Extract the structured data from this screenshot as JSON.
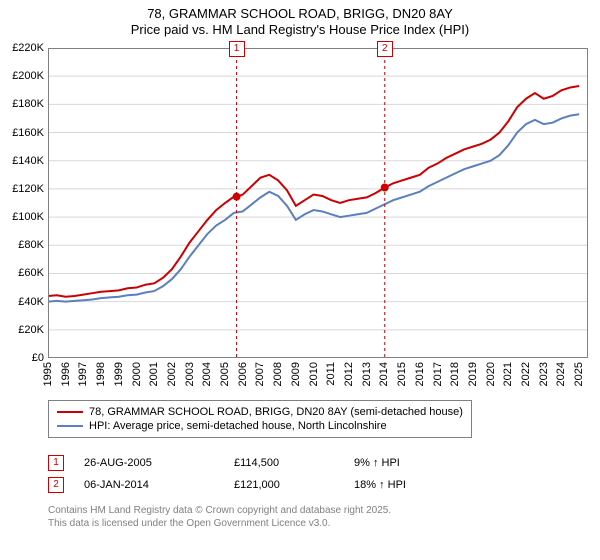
{
  "title": {
    "line1": "78, GRAMMAR SCHOOL ROAD, BRIGG, DN20 8AY",
    "line2": "Price paid vs. HM Land Registry's House Price Index (HPI)",
    "fontsize": 13,
    "color": "#000000"
  },
  "chart": {
    "type": "line",
    "background_color": "#ffffff",
    "plot_border_color": "#808080",
    "grid_color": "#d8d8d8",
    "xlim": [
      1995,
      2025.5
    ],
    "ylim": [
      0,
      220000
    ],
    "xticks": [
      1995,
      1996,
      1997,
      1998,
      1999,
      2000,
      2001,
      2002,
      2003,
      2004,
      2005,
      2006,
      2007,
      2008,
      2009,
      2010,
      2011,
      2012,
      2013,
      2014,
      2015,
      2016,
      2017,
      2018,
      2019,
      2020,
      2021,
      2022,
      2023,
      2024,
      2025
    ],
    "yticks": [
      0,
      20000,
      40000,
      60000,
      80000,
      100000,
      120000,
      140000,
      160000,
      180000,
      200000,
      220000
    ],
    "ytick_labels": [
      "£0",
      "£20K",
      "£40K",
      "£60K",
      "£80K",
      "£100K",
      "£120K",
      "£140K",
      "£160K",
      "£180K",
      "£200K",
      "£220K"
    ],
    "tick_label_fontsize": 11,
    "tick_label_color": "#000000",
    "xtick_rotation": -90
  },
  "series": {
    "property": {
      "label": "78, GRAMMAR SCHOOL ROAD, BRIGG, DN20 8AY (semi-detached house)",
      "color": "#cc0000",
      "line_width": 2,
      "x": [
        1995,
        1995.5,
        1996,
        1996.5,
        1997,
        1997.5,
        1998,
        1998.5,
        1999,
        1999.5,
        2000,
        2000.5,
        2001,
        2001.5,
        2002,
        2002.5,
        2003,
        2003.5,
        2004,
        2004.5,
        2005,
        2005.5,
        2005.65,
        2006,
        2006.5,
        2007,
        2007.5,
        2008,
        2008.5,
        2009,
        2009.5,
        2010,
        2010.5,
        2011,
        2011.5,
        2012,
        2012.5,
        2013,
        2013.5,
        2014.02,
        2014.5,
        2015,
        2015.5,
        2016,
        2016.5,
        2017,
        2017.5,
        2018,
        2018.5,
        2019,
        2019.5,
        2020,
        2020.5,
        2021,
        2021.5,
        2022,
        2022.5,
        2023,
        2023.5,
        2024,
        2024.5,
        2025
      ],
      "y": [
        44000,
        44500,
        43500,
        44000,
        45000,
        46000,
        47000,
        47500,
        48000,
        49500,
        50000,
        52000,
        53000,
        57000,
        63000,
        72000,
        82000,
        90000,
        98000,
        105000,
        110000,
        114500,
        114500,
        116000,
        122000,
        128000,
        130000,
        126000,
        119000,
        108000,
        112000,
        116000,
        115000,
        112000,
        110000,
        112000,
        113000,
        114000,
        117000,
        121000,
        124000,
        126000,
        128000,
        130000,
        135000,
        138000,
        142000,
        145000,
        148000,
        150000,
        152000,
        155000,
        160000,
        168000,
        178000,
        184000,
        188000,
        184000,
        186000,
        190000,
        192000,
        193000
      ]
    },
    "hpi": {
      "label": "HPI: Average price, semi-detached house, North Lincolnshire",
      "color": "#5b7fbf",
      "line_width": 2,
      "x": [
        1995,
        1995.5,
        1996,
        1996.5,
        1997,
        1997.5,
        1998,
        1998.5,
        1999,
        1999.5,
        2000,
        2000.5,
        2001,
        2001.5,
        2002,
        2002.5,
        2003,
        2003.5,
        2004,
        2004.5,
        2005,
        2005.5,
        2006,
        2006.5,
        2007,
        2007.5,
        2008,
        2008.5,
        2009,
        2009.5,
        2010,
        2010.5,
        2011,
        2011.5,
        2012,
        2012.5,
        2013,
        2013.5,
        2014,
        2014.5,
        2015,
        2015.5,
        2016,
        2016.5,
        2017,
        2017.5,
        2018,
        2018.5,
        2019,
        2019.5,
        2020,
        2020.5,
        2021,
        2021.5,
        2022,
        2022.5,
        2023,
        2023.5,
        2024,
        2024.5,
        2025
      ],
      "y": [
        40000,
        40500,
        40000,
        40500,
        41000,
        41500,
        42500,
        43000,
        43500,
        44500,
        45000,
        46500,
        47500,
        51000,
        56000,
        63000,
        72000,
        80000,
        88000,
        94000,
        98000,
        103000,
        104000,
        109000,
        114000,
        118000,
        115000,
        108000,
        98000,
        102000,
        105000,
        104000,
        102000,
        100000,
        101000,
        102000,
        103000,
        106000,
        109000,
        112000,
        114000,
        116000,
        118000,
        122000,
        125000,
        128000,
        131000,
        134000,
        136000,
        138000,
        140000,
        144000,
        151000,
        160000,
        166000,
        169000,
        166000,
        167000,
        170000,
        172000,
        173000
      ]
    }
  },
  "markers": [
    {
      "id": "1",
      "x": 2005.65,
      "y": 114500,
      "vline_color": "#cc0000",
      "box_color": "#cc0000",
      "label_y": -7
    },
    {
      "id": "2",
      "x": 2014.02,
      "y": 121000,
      "vline_color": "#cc0000",
      "box_color": "#cc0000",
      "label_y": -7
    }
  ],
  "legend": {
    "border_color": "#808080",
    "fontsize": 11,
    "items": [
      {
        "series": "property"
      },
      {
        "series": "hpi"
      }
    ]
  },
  "sales": [
    {
      "marker": "1",
      "date": "26-AUG-2005",
      "price": "£114,500",
      "delta": "9% ↑ HPI"
    },
    {
      "marker": "2",
      "date": "06-JAN-2014",
      "price": "£121,000",
      "delta": "18% ↑ HPI"
    }
  ],
  "footnote": {
    "line1": "Contains HM Land Registry data © Crown copyright and database right 2025.",
    "line2": "This data is licensed under the Open Government Licence v3.0.",
    "color": "#808080",
    "fontsize": 10
  }
}
